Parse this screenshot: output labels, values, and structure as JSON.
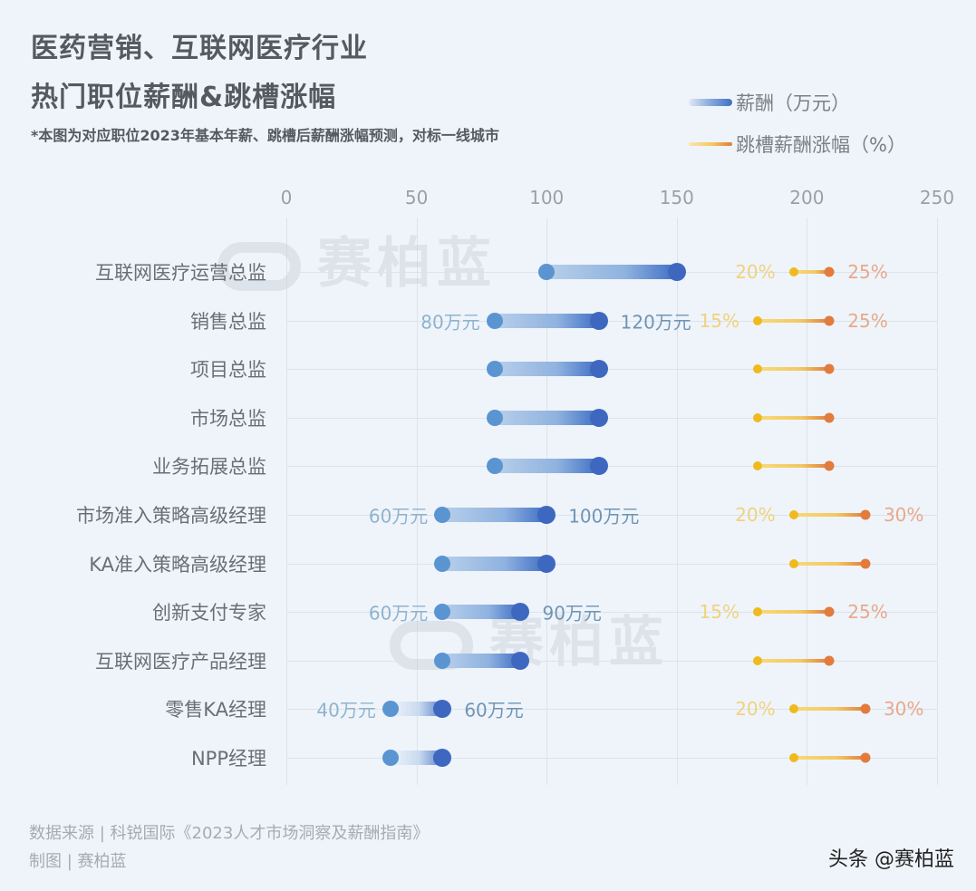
{
  "header": {
    "title_line1": "医药营销、互联网医疗行业",
    "title_line2": "热门职位薪酬&跳槽涨幅",
    "subtitle": "*本图为对应职位2023年基本年薪、跳槽后薪酬涨幅预测，对标一线城市"
  },
  "legend": {
    "salary": "薪酬（万元）",
    "raise": "跳槽薪酬涨幅（%）"
  },
  "axis": {
    "ticks": [
      "0",
      "50",
      "100",
      "150",
      "200",
      "250"
    ]
  },
  "watermark": "赛柏蓝",
  "footer": {
    "source": "数据来源 | 科锐国际《2023人才市场洞察及薪酬指南》",
    "credit": "制图 | 赛柏蓝",
    "brand": "头条 @赛柏蓝"
  },
  "colors": {
    "salary_low": "#5a95d2",
    "salary_high": "#3e68c0",
    "raise_low": "#efba1e",
    "raise_high": "#e27b3c",
    "background": "#eff4fa"
  },
  "rows": [
    {
      "label": "互联网医疗运营总监",
      "salary_low": 100,
      "salary_high": 150,
      "salary_low_label": "",
      "salary_high_label": "",
      "raise_low": 20,
      "raise_high": 25,
      "raise_low_label": "20%",
      "raise_high_label": "25%"
    },
    {
      "label": "销售总监",
      "salary_low": 80,
      "salary_high": 120,
      "salary_low_label": "80万元",
      "salary_high_label": "120万元",
      "raise_low": 15,
      "raise_high": 25,
      "raise_low_label": "15%",
      "raise_high_label": "25%"
    },
    {
      "label": "项目总监",
      "salary_low": 80,
      "salary_high": 120,
      "salary_low_label": "",
      "salary_high_label": "",
      "raise_low": 15,
      "raise_high": 25,
      "raise_low_label": "",
      "raise_high_label": ""
    },
    {
      "label": "市场总监",
      "salary_low": 80,
      "salary_high": 120,
      "salary_low_label": "",
      "salary_high_label": "",
      "raise_low": 15,
      "raise_high": 25,
      "raise_low_label": "",
      "raise_high_label": ""
    },
    {
      "label": "业务拓展总监",
      "salary_low": 80,
      "salary_high": 120,
      "salary_low_label": "",
      "salary_high_label": "",
      "raise_low": 15,
      "raise_high": 25,
      "raise_low_label": "",
      "raise_high_label": ""
    },
    {
      "label": "市场准入策略高级经理",
      "salary_low": 60,
      "salary_high": 100,
      "salary_low_label": "60万元",
      "salary_high_label": "100万元",
      "raise_low": 20,
      "raise_high": 30,
      "raise_low_label": "20%",
      "raise_high_label": "30%"
    },
    {
      "label": "KA准入策略高级经理",
      "salary_low": 60,
      "salary_high": 100,
      "salary_low_label": "",
      "salary_high_label": "",
      "raise_low": 20,
      "raise_high": 30,
      "raise_low_label": "",
      "raise_high_label": ""
    },
    {
      "label": "创新支付专家",
      "salary_low": 60,
      "salary_high": 90,
      "salary_low_label": "60万元",
      "salary_high_label": "90万元",
      "raise_low": 15,
      "raise_high": 25,
      "raise_low_label": "15%",
      "raise_high_label": "25%"
    },
    {
      "label": "互联网医疗产品经理",
      "salary_low": 60,
      "salary_high": 90,
      "salary_low_label": "",
      "salary_high_label": "",
      "raise_low": 15,
      "raise_high": 25,
      "raise_low_label": "",
      "raise_high_label": ""
    },
    {
      "label": "零售KA经理",
      "salary_low": 40,
      "salary_high": 60,
      "salary_low_label": "40万元",
      "salary_high_label": "60万元",
      "raise_low": 20,
      "raise_high": 30,
      "raise_low_label": "20%",
      "raise_high_label": "30%"
    },
    {
      "label": "NPP经理",
      "salary_low": 40,
      "salary_high": 60,
      "salary_low_label": "",
      "salary_high_label": "",
      "raise_low": 20,
      "raise_high": 30,
      "raise_low_label": "",
      "raise_high_label": ""
    }
  ],
  "chart_data": {
    "type": "dumbbell",
    "title": "医药营销、互联网医疗行业 热门职位薪酬&跳槽涨幅",
    "subtitle": "*本图为对应职位2023年基本年薪、跳槽后薪酬涨幅预测，对标一线城市",
    "xlabel": "",
    "ylabel": "",
    "xlim": [
      0,
      250
    ],
    "x_ticks": [
      0,
      50,
      100,
      150,
      200,
      250
    ],
    "grid": true,
    "legend_position": "top-right",
    "categories": [
      "互联网医疗运营总监",
      "销售总监",
      "项目总监",
      "市场总监",
      "业务拓展总监",
      "市场准入策略高级经理",
      "KA准入策略高级经理",
      "创新支付专家",
      "互联网医疗产品经理",
      "零售KA经理",
      "NPP经理"
    ],
    "series": [
      {
        "name": "薪酬（万元）- 下限",
        "values": [
          100,
          80,
          80,
          80,
          80,
          60,
          60,
          60,
          60,
          40,
          40
        ]
      },
      {
        "name": "薪酬（万元）- 上限",
        "values": [
          150,
          120,
          120,
          120,
          120,
          100,
          100,
          90,
          90,
          60,
          60
        ]
      },
      {
        "name": "跳槽薪酬涨幅（%）- 下限",
        "values": [
          20,
          15,
          15,
          15,
          15,
          20,
          20,
          15,
          15,
          20,
          20
        ]
      },
      {
        "name": "跳槽薪酬涨幅（%）- 上限",
        "values": [
          25,
          25,
          25,
          25,
          25,
          30,
          30,
          25,
          25,
          30,
          30
        ]
      }
    ],
    "annotations": [
      "80万元",
      "120万元",
      "60万元",
      "100万元",
      "90万元",
      "40万元",
      "60万元",
      "15%",
      "20%",
      "25%",
      "30%"
    ],
    "source": "数据来源 | 科锐国际《2023人才市场洞察及薪酬指南》"
  }
}
